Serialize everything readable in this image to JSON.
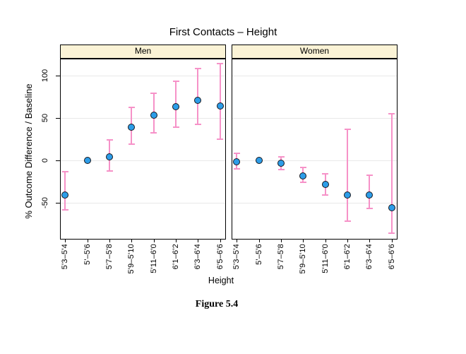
{
  "title": "First Contacts – Height",
  "caption": "Figure 5.4",
  "chart_data": {
    "type": "scatter",
    "title": "First Contacts – Height",
    "xlabel": "Height",
    "ylabel": "% Outcome Difference / Baseline",
    "ylim": [
      -93,
      119
    ],
    "yticks": [
      100,
      50,
      0,
      -50
    ],
    "ytick_labels": [
      "100",
      "50",
      "0",
      "-50"
    ],
    "grid": "horizontal",
    "legend": null,
    "categories": [
      "5'3–5'4",
      "5'–5'6",
      "5'7–5'8",
      "5'9–5'10",
      "5'11–6'0",
      "6'1–6'2",
      "6'3–6'4",
      "6'5–6'6"
    ],
    "panels": [
      {
        "label": "Men",
        "values": [
          -41,
          0,
          4,
          39,
          53,
          63,
          71,
          64
        ],
        "ci_low": [
          -59,
          null,
          -13,
          19,
          32,
          39,
          42,
          25
        ],
        "ci_high": [
          -14,
          null,
          24,
          62,
          79,
          93,
          108,
          114
        ]
      },
      {
        "label": "Women",
        "values": [
          -2,
          0,
          -4,
          -19,
          -29,
          -41,
          -41,
          -56
        ],
        "ci_low": [
          -10,
          null,
          -11,
          -26,
          -41,
          -72,
          -57,
          -86
        ],
        "ci_high": [
          8,
          null,
          4,
          -9,
          -16,
          36,
          -18,
          55
        ]
      }
    ]
  },
  "colors": {
    "marker_fill": "#2D9DE8",
    "marker_stroke": "#16161d",
    "error_bar": "#F692C8",
    "gridline": "#E9E9E9",
    "panel_header_bg": "#FBF3D6",
    "panel_border": "#000000"
  }
}
